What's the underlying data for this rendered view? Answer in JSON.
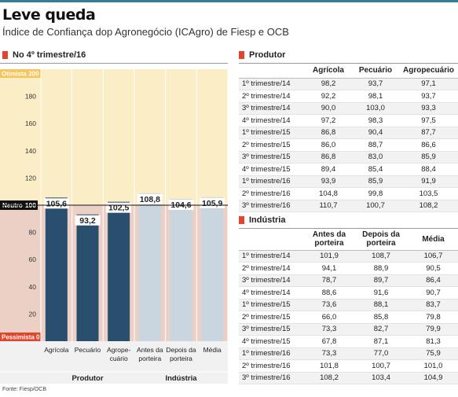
{
  "header": {
    "title": "Leve queda",
    "subtitle": "Índice de Confiança dop Agronegócio (ICAgro) de Fiesp e OCB"
  },
  "chart_section": {
    "heading": "No 4º trimestre/16"
  },
  "source": "Fonte: Fiesp/OCB",
  "colors": {
    "accent_square": "#e2452b",
    "produtor_bar": "#2a4f6e",
    "industria_bar": "#c9d6df",
    "optimist_zone": "#fbedc6",
    "pessimist_zone": "#ecd0c6",
    "top_rule": "#2e7f98"
  },
  "chart_data": {
    "type": "bar",
    "title": "No 4º trimestre/16",
    "ylim": [
      0,
      200
    ],
    "yticks": [
      0,
      20,
      40,
      60,
      80,
      100,
      120,
      140,
      160,
      180,
      200
    ],
    "zone_labels": {
      "top": "Otimista 200",
      "neutral": "Neutro",
      "bottom": "Pessimista 0"
    },
    "neutral_value": 100,
    "categories": [
      "Agrícola",
      "Pecuário",
      "Agropecuário",
      "Antes da porteira",
      "Depois da porteira",
      "Média"
    ],
    "category_labels": [
      [
        "Agrícola"
      ],
      [
        "Pecuário"
      ],
      [
        "Agrope-",
        "cuário"
      ],
      [
        "Antes da",
        "porteira"
      ],
      [
        "Depois da",
        "porteira"
      ],
      [
        "Média"
      ]
    ],
    "values": [
      105.6,
      93.2,
      102.5,
      108.8,
      104.6,
      105.9
    ],
    "value_labels": [
      "105,6",
      "93,2",
      "102,5",
      "108,8",
      "104,6",
      "105,9"
    ],
    "groups": [
      {
        "name": "Produtor",
        "categories": [
          0,
          1,
          2
        ]
      },
      {
        "name": "Indústria",
        "categories": [
          3,
          4,
          5
        ]
      }
    ]
  },
  "produtor_table": {
    "heading": "Produtor",
    "columns": [
      "Agrícola",
      "Pecuário",
      "Agropecuário"
    ],
    "rows": [
      {
        "label": "1º trimestre/14",
        "values": [
          "98,2",
          "93,7",
          "97,1"
        ]
      },
      {
        "label": "2º trimestre/14",
        "values": [
          "92,2",
          "98,1",
          "93,7"
        ]
      },
      {
        "label": "3º trimestre/14",
        "values": [
          "90,0",
          "103,0",
          "93,3"
        ]
      },
      {
        "label": "4º trimestre/14",
        "values": [
          "97,2",
          "98,3",
          "97,5"
        ]
      },
      {
        "label": "1º trimestre/15",
        "values": [
          "86,8",
          "90,4",
          "87,7"
        ]
      },
      {
        "label": "2º trimestre/15",
        "values": [
          "86,0",
          "88,7",
          "86,6"
        ]
      },
      {
        "label": "3º trimestre/15",
        "values": [
          "86,8",
          "83,0",
          "85,9"
        ]
      },
      {
        "label": "4º trimestre/15",
        "values": [
          "89,4",
          "85,4",
          "88,4"
        ]
      },
      {
        "label": "1º trimestre/16",
        "values": [
          "93,9",
          "85,9",
          "91,9"
        ]
      },
      {
        "label": "2º trimestre/16",
        "values": [
          "104,8",
          "99,8",
          "103,5"
        ]
      },
      {
        "label": "3º trimestre/16",
        "values": [
          "110,7",
          "100,7",
          "108,2"
        ]
      }
    ]
  },
  "industria_table": {
    "heading": "Indústria",
    "columns": [
      "Antes da porteira",
      "Depois da porteira",
      "Média"
    ],
    "rows": [
      {
        "label": "1º trimestre/14",
        "values": [
          "101,9",
          "108,7",
          "106,7"
        ]
      },
      {
        "label": "2º trimestre/14",
        "values": [
          "94,1",
          "88,9",
          "90,5"
        ]
      },
      {
        "label": "3º trimestre/14",
        "values": [
          "78,7",
          "89,7",
          "86,4"
        ]
      },
      {
        "label": "4º trimestre/14",
        "values": [
          "88,6",
          "91,6",
          "90,7"
        ]
      },
      {
        "label": "1º trimestre/15",
        "values": [
          "73,6",
          "88,1",
          "83,7"
        ]
      },
      {
        "label": "2º trimestre/15",
        "values": [
          "66,0",
          "85,8",
          "79,8"
        ]
      },
      {
        "label": "3º trimestre/15",
        "values": [
          "73,3",
          "82,7",
          "79,9"
        ]
      },
      {
        "label": "4º trimestre/15",
        "values": [
          "67,8",
          "87,1",
          "81,3"
        ]
      },
      {
        "label": "1º trimestre/16",
        "values": [
          "73,3",
          "77,0",
          "75,9"
        ]
      },
      {
        "label": "2º trimestre/16",
        "values": [
          "101,8",
          "100,7",
          "101,0"
        ]
      },
      {
        "label": "3º trimestre/16",
        "values": [
          "108,2",
          "103,4",
          "104,9"
        ]
      }
    ]
  }
}
